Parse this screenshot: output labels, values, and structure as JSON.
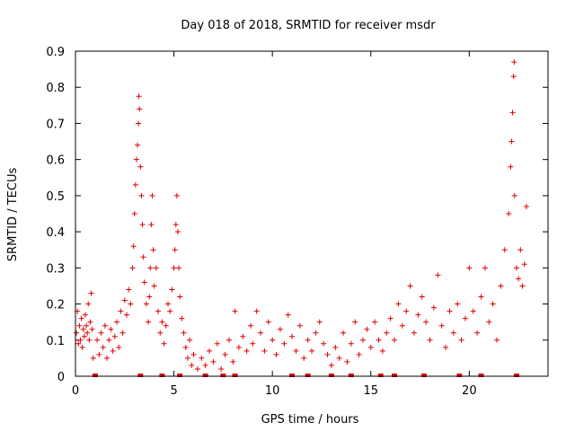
{
  "chart_data": {
    "type": "scatter",
    "title": "Day 018 of 2018, SRMTID for receiver msdr",
    "xlabel": "GPS time / hours",
    "ylabel": "SRMTID / TECUs",
    "xlim": [
      0,
      24
    ],
    "ylim": [
      0,
      0.9
    ],
    "x_ticks": [
      0,
      5,
      10,
      15,
      20
    ],
    "y_ticks": [
      0,
      0.1,
      0.2,
      0.3,
      0.4,
      0.5,
      0.6,
      0.7,
      0.8,
      0.9
    ],
    "x_tick_labels": [
      "0",
      "5",
      "10",
      "15",
      "20"
    ],
    "y_tick_labels": [
      "0",
      "0.1",
      "0.2",
      "0.3",
      "0.4",
      "0.5",
      "0.6",
      "0.7",
      "0.8",
      "0.9"
    ],
    "marker": "plus",
    "color": "#e00000",
    "series": [
      {
        "name": "SRMTID",
        "points": [
          [
            0.05,
            0.12
          ],
          [
            0.1,
            0.18
          ],
          [
            0.15,
            0.09
          ],
          [
            0.2,
            0.14
          ],
          [
            0.25,
            0.1
          ],
          [
            0.3,
            0.16
          ],
          [
            0.35,
            0.08
          ],
          [
            0.4,
            0.13
          ],
          [
            0.45,
            0.11
          ],
          [
            0.5,
            0.17
          ],
          [
            0.55,
            0.14
          ],
          [
            0.6,
            0.12
          ],
          [
            0.65,
            0.2
          ],
          [
            0.7,
            0.1
          ],
          [
            0.75,
            0.15
          ],
          [
            0.8,
            0.23
          ],
          [
            0.85,
            0.13
          ],
          [
            0.9,
            0.05
          ],
          [
            1.1,
            0.1
          ],
          [
            1.2,
            0.06
          ],
          [
            1.3,
            0.12
          ],
          [
            1.4,
            0.08
          ],
          [
            1.5,
            0.14
          ],
          [
            1.6,
            0.05
          ],
          [
            1.7,
            0.1
          ],
          [
            1.8,
            0.13
          ],
          [
            1.9,
            0.07
          ],
          [
            2.0,
            0.11
          ],
          [
            2.1,
            0.15
          ],
          [
            2.2,
            0.08
          ],
          [
            2.3,
            0.18
          ],
          [
            2.4,
            0.12
          ],
          [
            2.5,
            0.21
          ],
          [
            2.6,
            0.17
          ],
          [
            2.7,
            0.24
          ],
          [
            2.8,
            0.2
          ],
          [
            2.9,
            0.3
          ],
          [
            2.95,
            0.36
          ],
          [
            3.0,
            0.45
          ],
          [
            3.05,
            0.53
          ],
          [
            3.1,
            0.6
          ],
          [
            3.15,
            0.64
          ],
          [
            3.2,
            0.7
          ],
          [
            3.22,
            0.775
          ],
          [
            3.25,
            0.74
          ],
          [
            3.3,
            0.58
          ],
          [
            3.35,
            0.5
          ],
          [
            3.4,
            0.42
          ],
          [
            3.45,
            0.33
          ],
          [
            3.5,
            0.26
          ],
          [
            3.6,
            0.2
          ],
          [
            3.7,
            0.15
          ],
          [
            3.75,
            0.22
          ],
          [
            3.8,
            0.3
          ],
          [
            3.85,
            0.42
          ],
          [
            3.9,
            0.5
          ],
          [
            3.95,
            0.35
          ],
          [
            4.0,
            0.25
          ],
          [
            4.1,
            0.3
          ],
          [
            4.2,
            0.18
          ],
          [
            4.3,
            0.12
          ],
          [
            4.4,
            0.15
          ],
          [
            4.5,
            0.09
          ],
          [
            4.6,
            0.14
          ],
          [
            4.7,
            0.2
          ],
          [
            4.8,
            0.18
          ],
          [
            4.9,
            0.24
          ],
          [
            5.0,
            0.3
          ],
          [
            5.05,
            0.35
          ],
          [
            5.1,
            0.42
          ],
          [
            5.15,
            0.5
          ],
          [
            5.2,
            0.4
          ],
          [
            5.25,
            0.3
          ],
          [
            5.3,
            0.22
          ],
          [
            5.4,
            0.16
          ],
          [
            5.5,
            0.12
          ],
          [
            5.6,
            0.08
          ],
          [
            5.7,
            0.05
          ],
          [
            5.8,
            0.1
          ],
          [
            5.9,
            0.03
          ],
          [
            6.0,
            0.06
          ],
          [
            6.2,
            0.02
          ],
          [
            6.4,
            0.05
          ],
          [
            6.6,
            0.03
          ],
          [
            6.8,
            0.07
          ],
          [
            7.0,
            0.04
          ],
          [
            7.2,
            0.09
          ],
          [
            7.4,
            0.02
          ],
          [
            7.6,
            0.06
          ],
          [
            7.8,
            0.1
          ],
          [
            8.0,
            0.04
          ],
          [
            8.1,
            0.18
          ],
          [
            8.3,
            0.08
          ],
          [
            8.5,
            0.11
          ],
          [
            8.7,
            0.07
          ],
          [
            8.9,
            0.14
          ],
          [
            9.0,
            0.09
          ],
          [
            9.2,
            0.18
          ],
          [
            9.4,
            0.12
          ],
          [
            9.6,
            0.07
          ],
          [
            9.8,
            0.15
          ],
          [
            10.0,
            0.1
          ],
          [
            10.2,
            0.06
          ],
          [
            10.4,
            0.13
          ],
          [
            10.6,
            0.09
          ],
          [
            10.8,
            0.17
          ],
          [
            11.0,
            0.11
          ],
          [
            11.2,
            0.07
          ],
          [
            11.4,
            0.14
          ],
          [
            11.6,
            0.05
          ],
          [
            11.8,
            0.1
          ],
          [
            12.0,
            0.07
          ],
          [
            12.2,
            0.12
          ],
          [
            12.4,
            0.15
          ],
          [
            12.6,
            0.09
          ],
          [
            12.8,
            0.06
          ],
          [
            13.0,
            0.03
          ],
          [
            13.2,
            0.08
          ],
          [
            13.4,
            0.05
          ],
          [
            13.6,
            0.12
          ],
          [
            13.8,
            0.04
          ],
          [
            14.0,
            0.09
          ],
          [
            14.2,
            0.15
          ],
          [
            14.4,
            0.06
          ],
          [
            14.6,
            0.1
          ],
          [
            14.8,
            0.13
          ],
          [
            15.0,
            0.08
          ],
          [
            15.2,
            0.15
          ],
          [
            15.4,
            0.1
          ],
          [
            15.6,
            0.07
          ],
          [
            15.8,
            0.12
          ],
          [
            16.0,
            0.16
          ],
          [
            16.2,
            0.1
          ],
          [
            16.4,
            0.2
          ],
          [
            16.6,
            0.14
          ],
          [
            16.8,
            0.18
          ],
          [
            17.0,
            0.25
          ],
          [
            17.2,
            0.12
          ],
          [
            17.4,
            0.17
          ],
          [
            17.6,
            0.22
          ],
          [
            17.8,
            0.15
          ],
          [
            18.0,
            0.1
          ],
          [
            18.2,
            0.19
          ],
          [
            18.4,
            0.28
          ],
          [
            18.6,
            0.14
          ],
          [
            18.8,
            0.08
          ],
          [
            19.0,
            0.18
          ],
          [
            19.2,
            0.12
          ],
          [
            19.4,
            0.2
          ],
          [
            19.6,
            0.1
          ],
          [
            19.8,
            0.16
          ],
          [
            20.0,
            0.3
          ],
          [
            20.2,
            0.18
          ],
          [
            20.4,
            0.12
          ],
          [
            20.6,
            0.22
          ],
          [
            20.8,
            0.3
          ],
          [
            21.0,
            0.15
          ],
          [
            21.2,
            0.2
          ],
          [
            21.4,
            0.1
          ],
          [
            21.6,
            0.25
          ],
          [
            21.8,
            0.35
          ],
          [
            22.0,
            0.45
          ],
          [
            22.1,
            0.58
          ],
          [
            22.15,
            0.65
          ],
          [
            22.2,
            0.73
          ],
          [
            22.25,
            0.83
          ],
          [
            22.28,
            0.87
          ],
          [
            22.3,
            0.5
          ],
          [
            22.4,
            0.3
          ],
          [
            22.5,
            0.27
          ],
          [
            22.6,
            0.35
          ],
          [
            22.7,
            0.25
          ],
          [
            22.8,
            0.31
          ],
          [
            22.9,
            0.47
          ]
        ]
      }
    ],
    "zero_markers": [
      1.0,
      3.3,
      4.4,
      5.3,
      6.6,
      7.5,
      8.1,
      11.0,
      11.8,
      13.0,
      14.0,
      15.5,
      16.2,
      17.7,
      19.5,
      20.6,
      22.4
    ]
  }
}
